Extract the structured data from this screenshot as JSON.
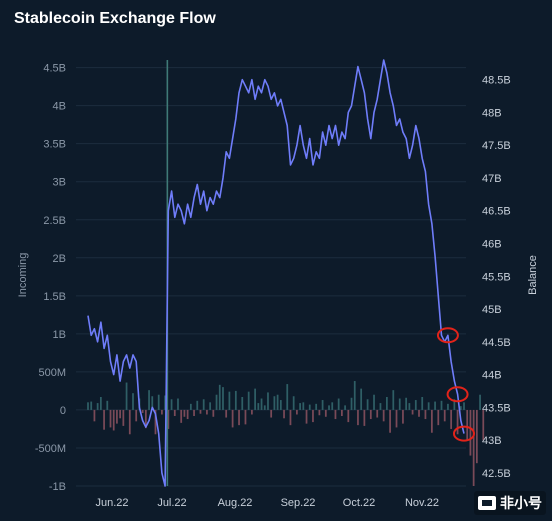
{
  "title": "Stablecoin Exchange Flow",
  "watermark": "非小号",
  "colors": {
    "background": "#0d1b2a",
    "balance_line": "#6f7dfa",
    "inflow_bar": "#2f5f66",
    "outflow_bar": "#7a4a58",
    "highlight_circle": "#e2231a",
    "spike_line": "#3f7a77"
  },
  "chart_data": {
    "type": "bar",
    "title": "Stablecoin Exchange Flow",
    "x_ticks": [
      "Jun.22",
      "Jul.22",
      "Aug.22",
      "Sep.22",
      "Oct.22",
      "Nov.22"
    ],
    "y_left": {
      "label": "Incoming",
      "ticks": [
        "4.5B",
        "4B",
        "3.5B",
        "3B",
        "2.5B",
        "2B",
        "1.5B",
        "1B",
        "500M",
        "0",
        "-500M",
        "-1B"
      ],
      "ylim": [
        -1000000000,
        4600000000
      ]
    },
    "y_right": {
      "label": "Balance",
      "ticks": [
        "48.5B",
        "48B",
        "47.5B",
        "47B",
        "46.5B",
        "46B",
        "45.5B",
        "45B",
        "44.5B",
        "44B",
        "43.5B",
        "43B",
        "42.5B"
      ],
      "ylim": [
        42.3,
        48.8
      ]
    },
    "grid": true,
    "series": [
      {
        "name": "Balance",
        "type": "line",
        "axis": "right",
        "values": [
          44.9,
          44.6,
          44.7,
          44.5,
          44.8,
          44.4,
          44.6,
          44.2,
          44.0,
          44.3,
          43.9,
          44.2,
          44.3,
          44.1,
          44.3,
          44.2,
          43.5,
          43.3,
          43.2,
          43.3,
          43.5,
          43.4,
          43.1,
          42.5,
          42.3,
          46.5,
          46.8,
          46.4,
          46.6,
          46.5,
          46.3,
          46.6,
          46.4,
          46.7,
          46.9,
          46.6,
          46.8,
          46.5,
          46.7,
          46.6,
          46.8,
          46.7,
          47.0,
          47.4,
          47.3,
          47.6,
          47.9,
          48.3,
          48.5,
          48.4,
          48.3,
          48.5,
          48.2,
          48.4,
          48.3,
          48.5,
          48.4,
          48.2,
          48.3,
          48.1,
          48.2,
          48.0,
          47.8,
          47.2,
          47.3,
          47.5,
          47.8,
          47.5,
          47.3,
          47.6,
          47.2,
          47.4,
          47.3,
          47.7,
          47.5,
          47.8,
          47.6,
          47.8,
          47.5,
          47.7,
          47.6,
          48.0,
          48.1,
          48.4,
          48.7,
          48.5,
          48.3,
          47.9,
          47.6,
          48.0,
          48.2,
          48.5,
          48.8,
          48.6,
          48.3,
          48.1,
          47.8,
          47.9,
          47.7,
          47.6,
          47.3,
          47.5,
          47.8,
          47.6,
          47.3,
          47.1,
          46.6,
          46.3,
          45.8,
          45.2,
          44.6,
          44.5,
          44.6,
          44.2,
          43.9,
          43.7,
          43.3,
          43.1
        ]
      },
      {
        "name": "Incoming",
        "type": "bar",
        "axis": "left",
        "values": [
          100,
          110,
          -150,
          90,
          170,
          -260,
          120,
          -230,
          -270,
          -180,
          -110,
          -210,
          360,
          -320,
          220,
          -150,
          150,
          -40,
          -240,
          260,
          180,
          -320,
          200,
          -60,
          190,
          -250,
          140,
          -80,
          150,
          -170,
          -90,
          -120,
          80,
          -80,
          120,
          -50,
          140,
          -60,
          100,
          -90,
          200,
          330,
          300,
          -100,
          240,
          -230,
          250,
          -200,
          170,
          -190,
          240,
          -60,
          280,
          90,
          150,
          60,
          230,
          -100,
          180,
          200,
          130,
          -110,
          340,
          -200,
          180,
          -60,
          90,
          100,
          -180,
          70,
          -160,
          80,
          -70,
          130,
          -90,
          60,
          100,
          -120,
          150,
          -80,
          60,
          -160,
          160,
          380,
          -200,
          280,
          -210,
          140,
          -120,
          200,
          -100,
          90,
          -150,
          170,
          -300,
          260,
          -230,
          150,
          -180,
          160,
          90,
          -60,
          130,
          -90,
          170,
          -120,
          100,
          -300,
          110,
          -200,
          120,
          -150,
          80,
          -250,
          140,
          -320,
          50,
          100,
          -400,
          -600,
          -1000,
          -700,
          200,
          -400
        ]
      }
    ],
    "spike": {
      "category_index": 25,
      "from": -1000000000,
      "to": 4600000000
    },
    "annotations": [
      {
        "type": "circle",
        "series": "Balance",
        "index": 112
      },
      {
        "type": "circle",
        "series": "Balance",
        "index": 115
      },
      {
        "type": "circle",
        "series": "Balance",
        "index": 117
      }
    ]
  }
}
